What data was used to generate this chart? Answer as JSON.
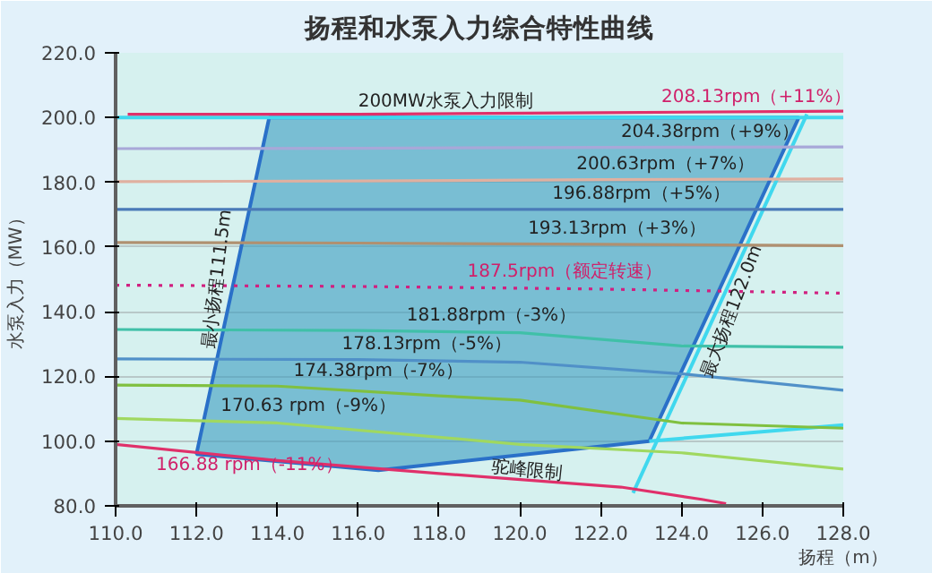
{
  "chart_data": {
    "type": "line",
    "title": "扬程和水泵入力综合特性曲线",
    "xlabel": "扬程（m）",
    "ylabel": "水泵入力（MW）",
    "xlim": [
      110,
      128
    ],
    "xticks": [
      {
        "value": 110,
        "label": "110.0"
      },
      {
        "value": 112,
        "label": "112.0"
      },
      {
        "value": 114,
        "label": "114.0"
      },
      {
        "value": 116,
        "label": "116.0"
      },
      {
        "value": 118,
        "label": "118.0"
      },
      {
        "value": 120,
        "label": "120.0"
      },
      {
        "value": 122,
        "label": "122.0"
      },
      {
        "value": 124,
        "label": "124.0"
      },
      {
        "value": 126,
        "label": "126.0"
      },
      {
        "value": 128,
        "label": "128.0"
      }
    ],
    "ylim": [
      80,
      220
    ],
    "yticks": [
      {
        "value": 80,
        "label": "80.0"
      },
      {
        "value": 100,
        "label": "100.0"
      },
      {
        "value": 120,
        "label": "120.0"
      },
      {
        "value": 140,
        "label": "140.0"
      },
      {
        "value": 160,
        "label": "160.0"
      },
      {
        "value": 180,
        "label": "180.0"
      },
      {
        "value": 200,
        "label": "200.0"
      },
      {
        "value": 220,
        "label": "220.0"
      }
    ],
    "grid": "y",
    "series": [
      {
        "type": "area",
        "color": "#3a9cc0",
        "x": [
          113.8,
          126.9,
          123.2,
          116.5,
          112.0,
          113.8
        ],
        "values": [
          200,
          200,
          100,
          91,
          96,
          200
        ]
      },
      {
        "color": "#40d8ee",
        "x": [
          110,
          128
        ],
        "values": [
          200,
          200
        ]
      },
      {
        "color": "#40d8ee",
        "x": [
          122.8,
          127.1
        ],
        "values": [
          84,
          201
        ]
      },
      {
        "color": "#40d8ee",
        "x": [
          123.2,
          128
        ],
        "values": [
          100,
          105
        ]
      },
      {
        "color": "#e0306a",
        "x": [
          110.3,
          116,
          122,
          128
        ],
        "values": [
          201,
          201,
          201.5,
          202
        ]
      },
      {
        "color": "#a8a8d8",
        "x": [
          110,
          116,
          122,
          128
        ],
        "values": [
          190.4,
          190.5,
          190.8,
          190.9
        ]
      },
      {
        "color": "#e0b0a0",
        "x": [
          110,
          116,
          122,
          128
        ],
        "values": [
          180.2,
          180.4,
          180.8,
          181
        ]
      },
      {
        "color": "#4a7ab8",
        "x": [
          110,
          116,
          122,
          128
        ],
        "values": [
          171.6,
          171.6,
          171.6,
          171.6
        ]
      },
      {
        "color": "#b09070",
        "x": [
          110,
          116,
          122,
          128
        ],
        "values": [
          161.4,
          161.2,
          160.8,
          160.4
        ]
      },
      {
        "color": "#d02080",
        "line_style": "dotted",
        "x": [
          110,
          116,
          122,
          128
        ],
        "values": [
          148.2,
          147.8,
          147,
          145.7
        ]
      },
      {
        "color": "#40c0a8",
        "x": [
          110,
          116,
          120,
          124,
          128
        ],
        "values": [
          134.5,
          134.2,
          133.5,
          129.4,
          129
        ]
      },
      {
        "color": "#5090c8",
        "x": [
          110,
          116,
          120,
          124,
          128
        ],
        "values": [
          125.4,
          125.2,
          124.4,
          120.8,
          115.7
        ]
      },
      {
        "color": "#80c040",
        "x": [
          110,
          114,
          118,
          120,
          124,
          128
        ],
        "values": [
          117.3,
          117,
          114,
          112.7,
          105.6,
          104
        ]
      },
      {
        "color": "#a0d860",
        "x": [
          110,
          114,
          120,
          124,
          128
        ],
        "values": [
          107,
          105.6,
          99,
          96.4,
          91.4
        ]
      },
      {
        "color": "#e0306a",
        "x": [
          110,
          114,
          118,
          122.5,
          124.5,
          125.1
        ],
        "values": [
          99,
          94,
          90,
          85.8,
          82,
          80.7
        ]
      }
    ],
    "annotations": [
      {
        "text": "200MW水泵入力限制",
        "x": 116.0,
        "y": 200
      },
      {
        "text": "208.13rpm（+11%）",
        "x": 123.5,
        "y": 201.6
      },
      {
        "text": "204.38rpm（+9%）",
        "x": 122.5,
        "y": 190.8
      },
      {
        "text": "200.63rpm（+7%）",
        "x": 121.4,
        "y": 180.7
      },
      {
        "text": "196.88rpm（+5%）",
        "x": 120.8,
        "y": 171.6
      },
      {
        "text": "193.13rpm（+3%）",
        "x": 120.2,
        "y": 160.9
      },
      {
        "text": "187.5rpm（额定转速）",
        "x": 118.7,
        "y": 147.5
      },
      {
        "text": "181.88rpm（-3%）",
        "x": 117.2,
        "y": 134.0
      },
      {
        "text": "178.13rpm（-5%）",
        "x": 115.6,
        "y": 125.2
      },
      {
        "text": "174.38rpm（-7%）",
        "x": 114.4,
        "y": 116.7
      },
      {
        "text": "170.63 rpm（-9%）",
        "x": 112.6,
        "y": 106.1
      },
      {
        "text": "166.88 rpm（-11%）",
        "x": 111.0,
        "y": 97.75
      },
      {
        "text": "最小扬程111.5m",
        "x": 112.93,
        "y": 150
      },
      {
        "text": "最大扬程122.0m",
        "x": 124.86,
        "y": 140
      },
      {
        "text": "驼峰限制",
        "x": 120.2,
        "y": 95.97
      }
    ]
  }
}
